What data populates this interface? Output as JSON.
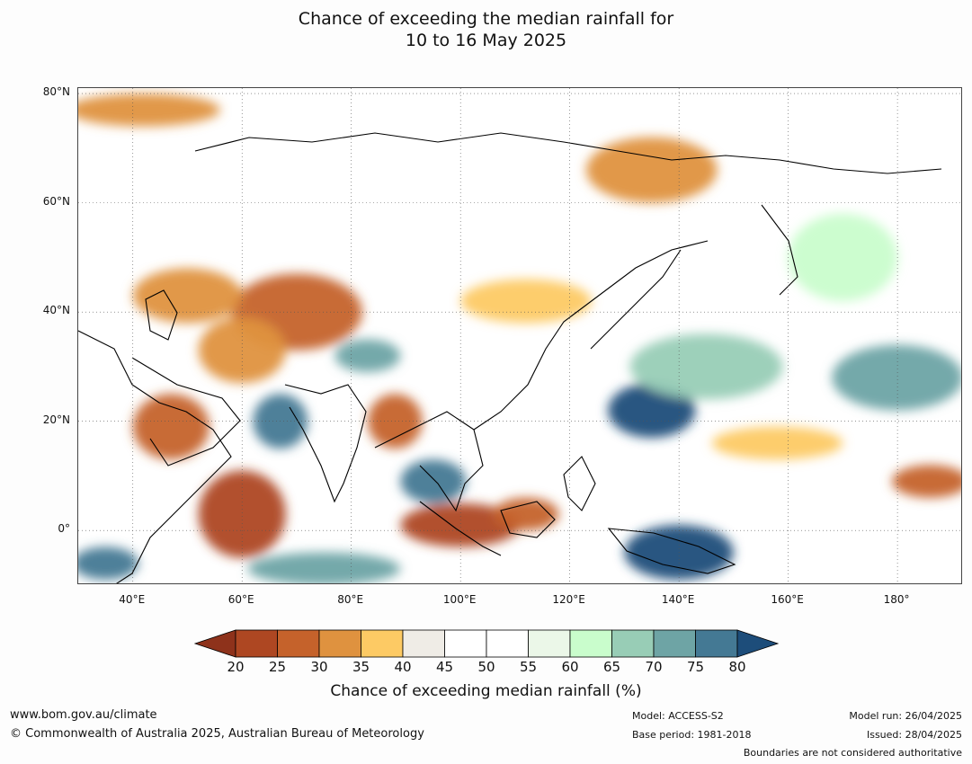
{
  "title_line1": "Chance of exceeding the median rainfall for",
  "title_line2": "10 to 16 May 2025",
  "map": {
    "lon_range": [
      30,
      192
    ],
    "lat_range": [
      -10,
      81
    ],
    "lat_ticks": [
      {
        "value": 80,
        "label": "80°N"
      },
      {
        "value": 60,
        "label": "60°N"
      },
      {
        "value": 40,
        "label": "40°N"
      },
      {
        "value": 20,
        "label": "20°N"
      },
      {
        "value": 0,
        "label": "0°"
      }
    ],
    "lon_ticks": [
      {
        "value": 40,
        "label": "40°E"
      },
      {
        "value": 60,
        "label": "60°E"
      },
      {
        "value": 80,
        "label": "80°E"
      },
      {
        "value": 100,
        "label": "100°E"
      },
      {
        "value": 120,
        "label": "120°E"
      },
      {
        "value": 140,
        "label": "140°E"
      },
      {
        "value": 160,
        "label": "160°E"
      },
      {
        "value": 180,
        "label": "180°"
      }
    ],
    "regions": [
      {
        "name": "dry-arabia",
        "lon": 47,
        "lat": 19,
        "rx": 7,
        "ry": 6,
        "level": 25
      },
      {
        "name": "dry-somali-sea",
        "lon": 60,
        "lat": 3,
        "rx": 8,
        "ry": 8,
        "level": 20
      },
      {
        "name": "dry-central-asia",
        "lon": 70,
        "lat": 40,
        "rx": 12,
        "ry": 7,
        "level": 25
      },
      {
        "name": "dry-iran",
        "lon": 60,
        "lat": 33,
        "rx": 8,
        "ry": 6,
        "level": 30
      },
      {
        "name": "dry-caspian",
        "lon": 50,
        "lat": 43,
        "rx": 10,
        "ry": 5,
        "level": 30
      },
      {
        "name": "dry-siberia-east",
        "lon": 135,
        "lat": 66,
        "rx": 12,
        "ry": 6,
        "level": 30
      },
      {
        "name": "dry-scandinavia-north",
        "lon": 42,
        "lat": 77,
        "rx": 14,
        "ry": 3,
        "level": 30
      },
      {
        "name": "dry-mongolia",
        "lon": 112,
        "lat": 42,
        "rx": 12,
        "ry": 4,
        "level": 35
      },
      {
        "name": "dry-bay-bengal-north",
        "lon": 88,
        "lat": 20,
        "rx": 5,
        "ry": 5,
        "level": 25
      },
      {
        "name": "dry-indonesia",
        "lon": 100,
        "lat": 1,
        "rx": 11,
        "ry": 4,
        "level": 20
      },
      {
        "name": "dry-borneo",
        "lon": 112,
        "lat": 3,
        "rx": 6,
        "ry": 3,
        "level": 25
      },
      {
        "name": "dry-pacific-east",
        "lon": 186,
        "lat": 9,
        "rx": 7,
        "ry": 3,
        "level": 25
      },
      {
        "name": "dry-pacific-mid",
        "lon": 158,
        "lat": 16,
        "rx": 12,
        "ry": 3,
        "level": 35
      },
      {
        "name": "wet-arabian-sea",
        "lon": 67,
        "lat": 20,
        "rx": 5,
        "ry": 5,
        "level": 75
      },
      {
        "name": "wet-philippine-sea",
        "lon": 135,
        "lat": 22,
        "rx": 8,
        "ry": 5,
        "level": 80
      },
      {
        "name": "wet-west-pacific",
        "lon": 145,
        "lat": 30,
        "rx": 14,
        "ry": 6,
        "level": 65
      },
      {
        "name": "wet-east-pacific",
        "lon": 180,
        "lat": 28,
        "rx": 12,
        "ry": 6,
        "level": 70
      },
      {
        "name": "wet-new-guinea",
        "lon": 140,
        "lat": -4,
        "rx": 10,
        "ry": 5,
        "level": 80
      },
      {
        "name": "wet-andaman",
        "lon": 95,
        "lat": 9,
        "rx": 6,
        "ry": 4,
        "level": 75
      },
      {
        "name": "wet-indian-ocean-south",
        "lon": 75,
        "lat": -7,
        "rx": 14,
        "ry": 3,
        "level": 70
      },
      {
        "name": "wet-west-africa-coast",
        "lon": 35,
        "lat": -6,
        "rx": 6,
        "ry": 3,
        "level": 75
      },
      {
        "name": "wet-tibet",
        "lon": 83,
        "lat": 32,
        "rx": 6,
        "ry": 3,
        "level": 70
      },
      {
        "name": "wet-japan-north",
        "lon": 170,
        "lat": 50,
        "rx": 10,
        "ry": 8,
        "level": 60
      }
    ]
  },
  "colorbar": {
    "ticks": [
      "20",
      "25",
      "30",
      "35",
      "40",
      "45",
      "50",
      "55",
      "60",
      "65",
      "70",
      "75",
      "80"
    ],
    "colors": [
      "#8e321b",
      "#ae4722",
      "#c5622b",
      "#df923f",
      "#fdca64",
      "#efece6",
      "#ffffff",
      "#ffffff",
      "#ebf7e8",
      "#c9fdcc",
      "#98cdb6",
      "#6ea4a5",
      "#447994",
      "#1d4d7a"
    ],
    "label": "Chance of exceeding median rainfall (%)"
  },
  "footer": {
    "website": "www.bom.gov.au/climate",
    "copyright": "© Commonwealth of Australia 2025, Australian Bureau of Meteorology",
    "model": "Model: ACCESS-S2",
    "base_period": "Base period: 1981-2018",
    "model_run": "Model run: 26/04/2025",
    "issued": "Issued: 28/04/2025",
    "disclaimer": "Boundaries are not considered authoritative"
  }
}
